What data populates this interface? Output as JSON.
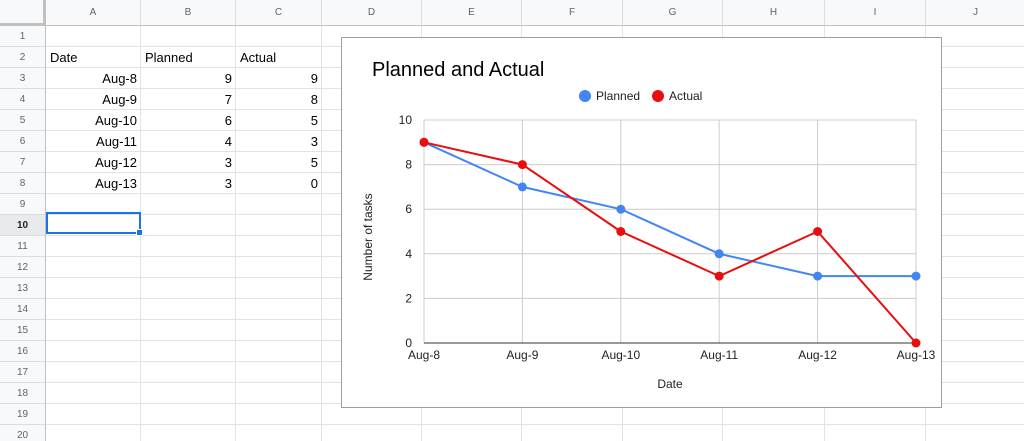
{
  "sheet": {
    "columns": [
      "A",
      "B",
      "C",
      "D",
      "E",
      "F",
      "G",
      "H",
      "I",
      "J"
    ],
    "rows": [
      "1",
      "2",
      "3",
      "4",
      "5",
      "6",
      "7",
      "8",
      "9",
      "10",
      "11",
      "12",
      "13",
      "14",
      "15",
      "16",
      "17",
      "18",
      "19",
      "20"
    ],
    "active_row": "10",
    "headers": {
      "date": "Date",
      "planned": "Planned",
      "actual": "Actual"
    },
    "data_rows": [
      {
        "date": "Aug-8",
        "planned": "9",
        "actual": "9"
      },
      {
        "date": "Aug-9",
        "planned": "7",
        "actual": "8"
      },
      {
        "date": "Aug-10",
        "planned": "6",
        "actual": "5"
      },
      {
        "date": "Aug-11",
        "planned": "4",
        "actual": "3"
      },
      {
        "date": "Aug-12",
        "planned": "3",
        "actual": "5"
      },
      {
        "date": "Aug-13",
        "planned": "3",
        "actual": "0"
      }
    ]
  },
  "chart_data": {
    "type": "line",
    "title": "Planned and Actual",
    "xlabel": "Date",
    "ylabel": "Number of tasks",
    "categories": [
      "Aug-8",
      "Aug-9",
      "Aug-10",
      "Aug-11",
      "Aug-12",
      "Aug-13"
    ],
    "ylim": [
      0,
      10
    ],
    "yticks": [
      "0",
      "2",
      "4",
      "6",
      "8",
      "10"
    ],
    "grid": true,
    "legend": "top",
    "series": [
      {
        "name": "Planned",
        "color": "#4285f4",
        "values": [
          9,
          7,
          6,
          4,
          3,
          3
        ]
      },
      {
        "name": "Actual",
        "color": "#ea0d0d",
        "values": [
          9,
          8,
          5,
          3,
          5,
          0
        ]
      }
    ]
  }
}
